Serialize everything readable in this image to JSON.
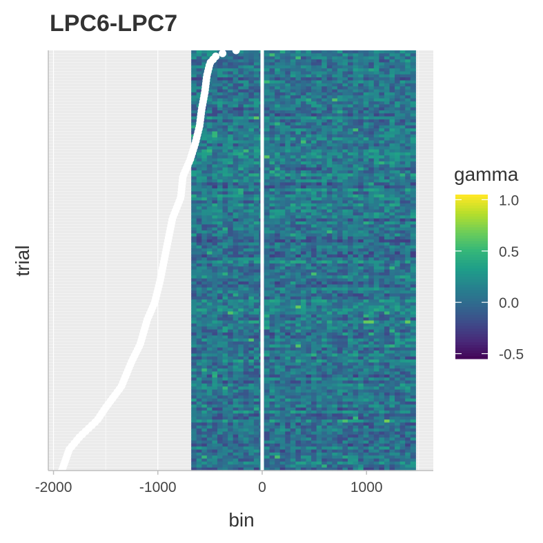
{
  "chart_data": {
    "type": "heatmap",
    "title": "LPC6-LPC7",
    "xlabel": "bin",
    "ylabel": "trial",
    "xlim": [
      -2050,
      1640
    ],
    "x_ticks": [
      -2000,
      -1000,
      0,
      1000
    ],
    "x_tick_labels": [
      "-2000",
      "-1000",
      "0",
      "1000"
    ],
    "y_tick_labels": [],
    "heatmap_x_range": [
      -680,
      1470
    ],
    "event_line_x": 0,
    "n_trials": 140,
    "legend": {
      "title": "gamma",
      "position": "right",
      "ticks": [
        1.0,
        0.5,
        0.0,
        -0.5
      ],
      "tick_labels": [
        "1.0",
        "0.5",
        "0.0",
        "-0.5"
      ],
      "range": [
        -0.55,
        1.05
      ],
      "colormap": "viridis"
    },
    "onset_curve": {
      "description_points_trial_fraction_vs_bin": [
        [
          0.0,
          -1920
        ],
        [
          0.05,
          -1850
        ],
        [
          0.08,
          -1750
        ],
        [
          0.12,
          -1580
        ],
        [
          0.15,
          -1500
        ],
        [
          0.2,
          -1350
        ],
        [
          0.26,
          -1250
        ],
        [
          0.3,
          -1170
        ],
        [
          0.36,
          -1100
        ],
        [
          0.4,
          -1030
        ],
        [
          0.45,
          -980
        ],
        [
          0.5,
          -940
        ],
        [
          0.55,
          -900
        ],
        [
          0.6,
          -860
        ],
        [
          0.65,
          -780
        ],
        [
          0.7,
          -760
        ],
        [
          0.74,
          -690
        ],
        [
          0.78,
          -640
        ],
        [
          0.82,
          -600
        ],
        [
          0.86,
          -580
        ],
        [
          0.9,
          -550
        ],
        [
          0.94,
          -530
        ],
        [
          0.97,
          -500
        ],
        [
          0.99,
          -430
        ],
        [
          1.0,
          -250
        ]
      ]
    },
    "grid": true,
    "background": "#EBEBEB",
    "point_color": "#FFFFFF",
    "event_line_color": "#FFFFFF"
  }
}
